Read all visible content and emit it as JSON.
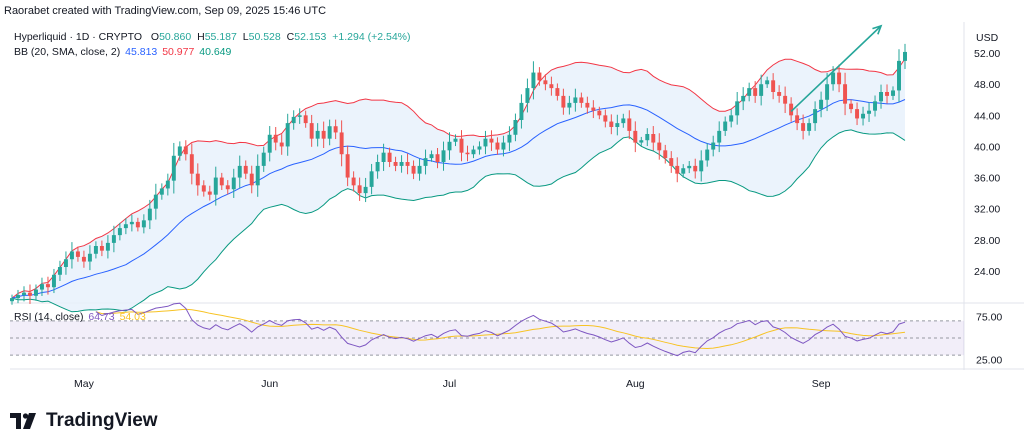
{
  "header": {
    "credit": "Raorabet created with TradingView.com, Sep 09, 2025 15:46 UTC"
  },
  "legend": {
    "symbol": "Hyperliquid · 1D · CRYPTO",
    "o_label": "O",
    "o": "50.860",
    "h_label": "H",
    "h": "55.187",
    "l_label": "L",
    "l": "50.528",
    "c_label": "C",
    "c": "52.153",
    "change": "+1.294 (+2.54%)",
    "bb_label": "BB (20, SMA, close, 2)",
    "bb_basis": "45.813",
    "bb_upper": "50.977",
    "bb_lower": "40.649",
    "rsi_label": "RSI (14, close)",
    "rsi_value": "64.73",
    "rsi_ma": "54.03"
  },
  "currency": "USD",
  "brand": {
    "name": "TradingView"
  },
  "colors": {
    "up": "#26a69a",
    "down": "#ef5350",
    "bb_upper": "#f23645",
    "bb_lower": "#089981",
    "bb_basis": "#2962ff",
    "bb_fill": "#e8f1fb",
    "rsi": "#7e57c2",
    "rsi_ma": "#f7c325",
    "arrow": "#26a69a"
  },
  "chart_data": {
    "type": "candlestick",
    "x_labels": [
      "May",
      "Jun",
      "Jul",
      "Aug",
      "Sep"
    ],
    "x_label_days": [
      12,
      43,
      73,
      104,
      135
    ],
    "y_ticks": [
      24,
      28,
      32,
      36,
      40,
      44,
      48,
      52
    ],
    "ylim": [
      20,
      56
    ],
    "days": 150,
    "closes": [
      20.5,
      20.9,
      21.2,
      20.8,
      21.6,
      22.3,
      21.9,
      23.5,
      24.5,
      25.5,
      26.5,
      25.8,
      25.2,
      26.2,
      27.2,
      26.6,
      27.6,
      28.6,
      29.5,
      30.0,
      30.3,
      29.6,
      30.5,
      32.0,
      33.8,
      34.6,
      35.6,
      38.8,
      40.0,
      39.0,
      36.5,
      35.0,
      34.2,
      33.8,
      36.0,
      35.0,
      34.5,
      36.0,
      37.5,
      36.5,
      35.0,
      37.5,
      39.2,
      41.5,
      40.5,
      40.0,
      43.0,
      43.8,
      44.0,
      43.0,
      41.0,
      42.0,
      41.0,
      42.6,
      41.8,
      39.0,
      36.0,
      35.0,
      34.0,
      34.8,
      36.8,
      38.0,
      39.2,
      38.0,
      37.5,
      38.0,
      37.5,
      36.5,
      37.5,
      38.5,
      39.0,
      38.0,
      39.5,
      40.6,
      41.0,
      39.2,
      39.0,
      39.6,
      40.0,
      41.0,
      40.5,
      39.6,
      40.5,
      41.5,
      43.4,
      45.6,
      47.5,
      49.5,
      48.5,
      48.0,
      47.5,
      46.5,
      45.0,
      45.6,
      46.3,
      45.6,
      45.0,
      44.6,
      44.0,
      43.2,
      42.5,
      43.0,
      43.6,
      42.0,
      40.5,
      40.8,
      41.6,
      40.5,
      39.5,
      38.5,
      37.5,
      36.5,
      37.2,
      37.5,
      36.8,
      38.2,
      39.6,
      40.5,
      42.0,
      43.2,
      44.0,
      45.8,
      46.5,
      47.5,
      46.5,
      48.0,
      48.5,
      47.0,
      46.5,
      45.5,
      44.0,
      43.0,
      42.0,
      43.0,
      44.8,
      46.0,
      48.0,
      49.5,
      48.0,
      45.5,
      44.8,
      43.6,
      44.2,
      44.6,
      45.8,
      47.0,
      46.5,
      47.2,
      51.0,
      52.15
    ],
    "bb": {
      "period": 20,
      "stddev": 2
    },
    "rsi": {
      "period": 14,
      "ma_period": 14,
      "levels": [
        70,
        50,
        30
      ]
    },
    "rsi_axis_labels": [
      "75.00",
      "25.00"
    ],
    "annotations": [
      {
        "type": "arrow",
        "from": {
          "day": 130,
          "price": 44.5
        },
        "to": {
          "day": 145,
          "price": 55.5
        }
      }
    ]
  }
}
